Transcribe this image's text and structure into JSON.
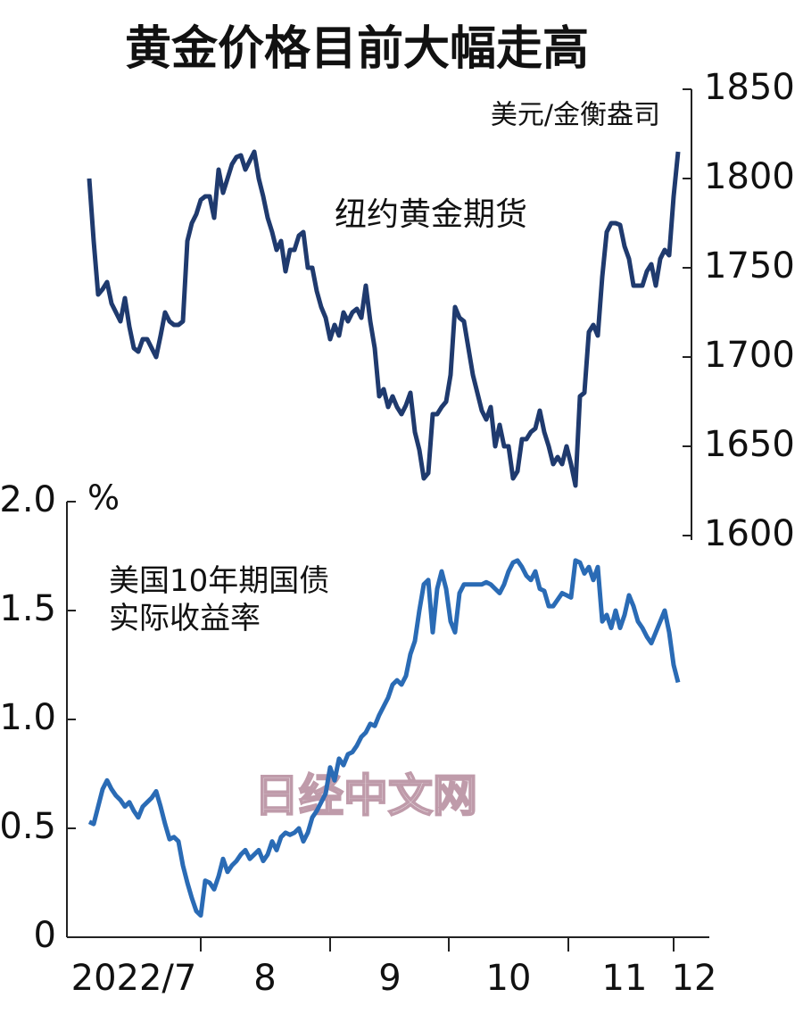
{
  "title": "黄金价格目前大幅走高",
  "watermark": "日经中文网",
  "x": {
    "categories": [
      "2022/7",
      "8",
      "9",
      "10",
      "11",
      "12"
    ]
  },
  "chart_data": [
    {
      "type": "line",
      "axis_side": "right",
      "unit": "美元/金衡盎司",
      "ylim": [
        1600,
        1850
      ],
      "yticks": [
        1600,
        1650,
        1700,
        1750,
        1800,
        1850
      ],
      "series": [
        {
          "name": "纽约黄金期货",
          "color": "#1f3a6e",
          "values": [
            1800,
            1765,
            1735,
            1738,
            1742,
            1730,
            1725,
            1720,
            1733,
            1717,
            1705,
            1703,
            1710,
            1710,
            1705,
            1700,
            1712,
            1725,
            1720,
            1718,
            1718,
            1720,
            1765,
            1775,
            1780,
            1788,
            1790,
            1790,
            1778,
            1805,
            1792,
            1800,
            1808,
            1812,
            1813,
            1805,
            1810,
            1815,
            1800,
            1790,
            1778,
            1770,
            1760,
            1765,
            1748,
            1760,
            1760,
            1768,
            1770,
            1750,
            1750,
            1737,
            1728,
            1722,
            1710,
            1718,
            1712,
            1725,
            1720,
            1725,
            1727,
            1722,
            1740,
            1720,
            1705,
            1678,
            1682,
            1672,
            1678,
            1672,
            1668,
            1673,
            1680,
            1658,
            1648,
            1632,
            1635,
            1668,
            1668,
            1672,
            1675,
            1690,
            1728,
            1722,
            1720,
            1705,
            1690,
            1680,
            1670,
            1665,
            1672,
            1650,
            1662,
            1650,
            1650,
            1632,
            1636,
            1654,
            1654,
            1658,
            1660,
            1670,
            1658,
            1650,
            1640,
            1644,
            1640,
            1650,
            1640,
            1628,
            1678,
            1680,
            1714,
            1718,
            1712,
            1745,
            1770,
            1775,
            1775,
            1774,
            1762,
            1755,
            1740,
            1740,
            1740,
            1748,
            1752,
            1740,
            1755,
            1760,
            1757,
            1790,
            1815
          ]
        }
      ]
    },
    {
      "type": "line",
      "axis_side": "left",
      "unit": "%",
      "ylim": [
        0,
        2
      ],
      "yticks": [
        0,
        0.5,
        {
          "value": 1,
          "label": "1.0"
        },
        1.5,
        {
          "value": 2,
          "label": "2.0"
        }
      ],
      "series": [
        {
          "name": "美国10年期国债实际收益率",
          "color": "#2a6bb5",
          "values": [
            0.53,
            0.52,
            0.6,
            0.68,
            0.72,
            0.68,
            0.65,
            0.63,
            0.6,
            0.62,
            0.58,
            0.55,
            0.6,
            0.62,
            0.64,
            0.67,
            0.6,
            0.52,
            0.45,
            0.46,
            0.44,
            0.33,
            0.25,
            0.18,
            0.12,
            0.1,
            0.26,
            0.25,
            0.22,
            0.28,
            0.36,
            0.3,
            0.33,
            0.35,
            0.38,
            0.4,
            0.36,
            0.38,
            0.4,
            0.35,
            0.38,
            0.44,
            0.4,
            0.46,
            0.48,
            0.47,
            0.48,
            0.5,
            0.44,
            0.48,
            0.55,
            0.58,
            0.62,
            0.66,
            0.78,
            0.72,
            0.82,
            0.79,
            0.84,
            0.85,
            0.88,
            0.92,
            0.94,
            0.98,
            0.97,
            1.02,
            1.06,
            1.1,
            1.16,
            1.18,
            1.16,
            1.2,
            1.3,
            1.36,
            1.5,
            1.62,
            1.64,
            1.4,
            1.6,
            1.68,
            1.6,
            1.45,
            1.4,
            1.58,
            1.62,
            1.62,
            1.62,
            1.62,
            1.62,
            1.63,
            1.62,
            1.6,
            1.58,
            1.62,
            1.68,
            1.72,
            1.73,
            1.7,
            1.66,
            1.64,
            1.68,
            1.6,
            1.59,
            1.52,
            1.52,
            1.55,
            1.58,
            1.57,
            1.56,
            1.73,
            1.72,
            1.67,
            1.7,
            1.64,
            1.7,
            1.45,
            1.48,
            1.42,
            1.5,
            1.42,
            1.48,
            1.57,
            1.52,
            1.45,
            1.42,
            1.38,
            1.35,
            1.4,
            1.45,
            1.5,
            1.4,
            1.25,
            1.17
          ]
        }
      ]
    }
  ]
}
